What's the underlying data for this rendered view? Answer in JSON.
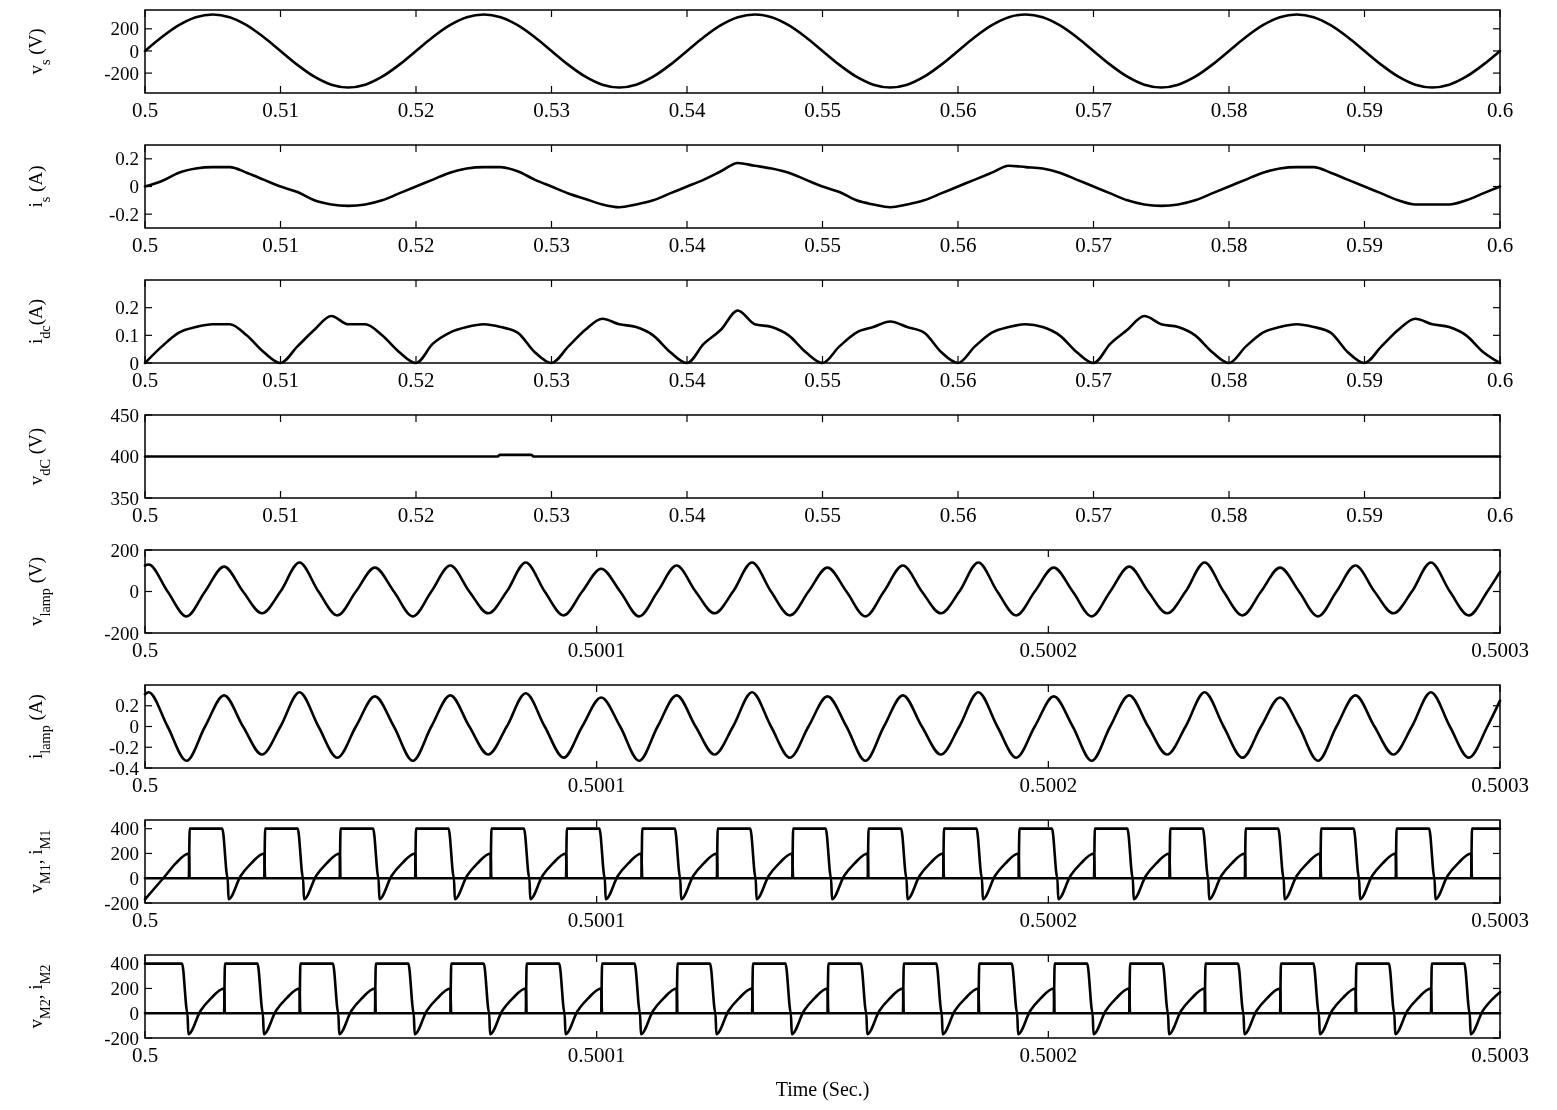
{
  "chart_data": [
    {
      "type": "line",
      "ylabel": "v$_{s}$ (V)",
      "xlim": [
        0.5,
        0.6
      ],
      "xticks": [
        0.5,
        0.51,
        0.52,
        0.53,
        0.54,
        0.55,
        0.56,
        0.57,
        0.58,
        0.59,
        0.6
      ],
      "ylim": [
        -380,
        370
      ],
      "yticks": [
        -200,
        0,
        200
      ],
      "x": [
        0.5,
        0.50125,
        0.5025,
        0.50375,
        0.505,
        0.50625,
        0.5075,
        0.50875,
        0.51,
        0.51125,
        0.5125,
        0.51375,
        0.515,
        0.51625,
        0.5175,
        0.51875,
        0.52,
        0.52125,
        0.5225,
        0.52375,
        0.525,
        0.52625,
        0.5275,
        0.52875,
        0.53,
        0.53125,
        0.5325,
        0.53375,
        0.535,
        0.53625,
        0.5375,
        0.53875,
        0.54,
        0.54125,
        0.5425,
        0.54375,
        0.545,
        0.54625,
        0.5475,
        0.54875,
        0.55,
        0.55125,
        0.5525,
        0.55375,
        0.555,
        0.55625,
        0.5575,
        0.55875,
        0.56,
        0.56125,
        0.5625,
        0.56375,
        0.565,
        0.56625,
        0.5675,
        0.56875,
        0.57,
        0.57125,
        0.5725,
        0.57375,
        0.575,
        0.57625,
        0.5775,
        0.57875,
        0.58,
        0.58125,
        0.5825,
        0.58375,
        0.585,
        0.58625,
        0.5875,
        0.58875,
        0.59,
        0.59125,
        0.5925,
        0.59375,
        0.595,
        0.59625,
        0.5975,
        0.59875,
        0.6
      ],
      "series": [
        {
          "color": "#000000",
          "values": [
            0,
            126,
            233,
            305,
            330,
            305,
            233,
            126,
            0,
            -126,
            -233,
            -305,
            -330,
            -305,
            -233,
            -126,
            0,
            126,
            233,
            305,
            330,
            305,
            233,
            126,
            0,
            -126,
            -233,
            -305,
            -330,
            -305,
            -233,
            -126,
            0,
            126,
            233,
            305,
            330,
            305,
            233,
            126,
            0,
            -126,
            -233,
            -305,
            -330,
            -305,
            -233,
            -126,
            0,
            126,
            233,
            305,
            330,
            305,
            233,
            126,
            0,
            -126,
            -233,
            -305,
            -330,
            -305,
            -233,
            -126,
            0,
            126,
            233,
            305,
            330,
            305,
            233,
            126,
            0,
            -126,
            -233,
            -305,
            -330,
            -305,
            -233,
            -126,
            0
          ]
        }
      ]
    },
    {
      "type": "line",
      "ylabel": "i$_{s}$ (A)",
      "xlim": [
        0.5,
        0.6
      ],
      "xticks": [
        0.5,
        0.51,
        0.52,
        0.53,
        0.54,
        0.55,
        0.56,
        0.57,
        0.58,
        0.59,
        0.6
      ],
      "ylim": [
        -0.3,
        0.3
      ],
      "yticks": [
        -0.2,
        0,
        0.2
      ],
      "x": [
        0.5,
        0.50125,
        0.5025,
        0.50375,
        0.505,
        0.50625,
        0.5075,
        0.50875,
        0.51,
        0.51125,
        0.5125,
        0.51375,
        0.515,
        0.51625,
        0.5175,
        0.51875,
        0.52,
        0.52125,
        0.5225,
        0.52375,
        0.525,
        0.52625,
        0.5275,
        0.52875,
        0.53,
        0.53125,
        0.5325,
        0.53375,
        0.535,
        0.53625,
        0.5375,
        0.53875,
        0.54,
        0.54125,
        0.5425,
        0.54375,
        0.545,
        0.54625,
        0.5475,
        0.54875,
        0.55,
        0.55125,
        0.5525,
        0.55375,
        0.555,
        0.55625,
        0.5575,
        0.55875,
        0.56,
        0.56125,
        0.5625,
        0.56375,
        0.565,
        0.56625,
        0.5675,
        0.56875,
        0.57,
        0.57125,
        0.5725,
        0.57375,
        0.575,
        0.57625,
        0.5775,
        0.57875,
        0.58,
        0.58125,
        0.5825,
        0.58375,
        0.585,
        0.58625,
        0.5875,
        0.58875,
        0.59,
        0.59125,
        0.5925,
        0.59375,
        0.595,
        0.59625,
        0.5975,
        0.59875,
        0.6
      ],
      "series": [
        {
          "color": "#000000",
          "values": [
            0,
            0.04,
            0.1,
            0.13,
            0.14,
            0.14,
            0.1,
            0.05,
            0,
            -0.04,
            -0.1,
            -0.13,
            -0.14,
            -0.13,
            -0.1,
            -0.05,
            0,
            0.05,
            0.1,
            0.13,
            0.14,
            0.14,
            0.11,
            0.05,
            0,
            -0.05,
            -0.09,
            -0.13,
            -0.15,
            -0.13,
            -0.1,
            -0.05,
            0,
            0.05,
            0.11,
            0.17,
            0.15,
            0.13,
            0.1,
            0.05,
            0,
            -0.04,
            -0.1,
            -0.13,
            -0.15,
            -0.13,
            -0.1,
            -0.05,
            0,
            0.05,
            0.1,
            0.15,
            0.14,
            0.13,
            0.1,
            0.05,
            0,
            -0.05,
            -0.1,
            -0.13,
            -0.14,
            -0.13,
            -0.1,
            -0.05,
            0,
            0.05,
            0.1,
            0.13,
            0.14,
            0.14,
            0.1,
            0.05,
            0,
            -0.05,
            -0.1,
            -0.13,
            -0.13,
            -0.13,
            -0.1,
            -0.05,
            0
          ]
        }
      ]
    },
    {
      "type": "line",
      "ylabel": "i$_{dc}$(A)",
      "xlim": [
        0.5,
        0.6
      ],
      "xticks": [
        0.5,
        0.51,
        0.52,
        0.53,
        0.54,
        0.55,
        0.56,
        0.57,
        0.58,
        0.59,
        0.6
      ],
      "ylim": [
        0,
        0.3
      ],
      "yticks": [
        0,
        0.1,
        0.2
      ],
      "x": [
        0.5,
        0.50125,
        0.5025,
        0.50375,
        0.505,
        0.50625,
        0.5075,
        0.50875,
        0.51,
        0.51125,
        0.5125,
        0.51375,
        0.515,
        0.51625,
        0.5175,
        0.51875,
        0.52,
        0.52125,
        0.5225,
        0.52375,
        0.525,
        0.52625,
        0.5275,
        0.52875,
        0.53,
        0.53125,
        0.5325,
        0.53375,
        0.535,
        0.53625,
        0.5375,
        0.53875,
        0.54,
        0.54125,
        0.5425,
        0.54375,
        0.545,
        0.54625,
        0.5475,
        0.54875,
        0.55,
        0.55125,
        0.5525,
        0.55375,
        0.555,
        0.55625,
        0.5575,
        0.55875,
        0.56,
        0.56125,
        0.5625,
        0.56375,
        0.565,
        0.56625,
        0.5675,
        0.56875,
        0.57,
        0.57125,
        0.5725,
        0.57375,
        0.575,
        0.57625,
        0.5775,
        0.57875,
        0.58,
        0.58125,
        0.5825,
        0.58375,
        0.585,
        0.58625,
        0.5875,
        0.58875,
        0.59,
        0.59125,
        0.5925,
        0.59375,
        0.595,
        0.59625,
        0.5975,
        0.59875,
        0.6
      ],
      "series": [
        {
          "color": "#000000",
          "values": [
            0,
            0.06,
            0.11,
            0.13,
            0.14,
            0.14,
            0.1,
            0.04,
            0,
            0.06,
            0.12,
            0.17,
            0.14,
            0.14,
            0.1,
            0.04,
            0,
            0.07,
            0.11,
            0.13,
            0.14,
            0.13,
            0.11,
            0.04,
            0,
            0.06,
            0.12,
            0.16,
            0.14,
            0.13,
            0.1,
            0.04,
            0,
            0.07,
            0.12,
            0.19,
            0.14,
            0.13,
            0.1,
            0.04,
            0,
            0.06,
            0.11,
            0.13,
            0.15,
            0.13,
            0.11,
            0.04,
            0,
            0.06,
            0.11,
            0.13,
            0.14,
            0.13,
            0.1,
            0.04,
            0,
            0.07,
            0.12,
            0.17,
            0.14,
            0.13,
            0.1,
            0.04,
            0,
            0.06,
            0.11,
            0.13,
            0.14,
            0.13,
            0.11,
            0.04,
            0,
            0.06,
            0.12,
            0.16,
            0.14,
            0.13,
            0.1,
            0.04,
            0
          ]
        }
      ]
    },
    {
      "type": "line",
      "ylabel": "v$_{dC}$ (V)",
      "xlim": [
        0.5,
        0.6
      ],
      "xticks": [
        0.5,
        0.51,
        0.52,
        0.53,
        0.54,
        0.55,
        0.56,
        0.57,
        0.58,
        0.59,
        0.6
      ],
      "ylim": [
        350,
        450
      ],
      "yticks": [
        350,
        400,
        450
      ],
      "x": [
        0.5,
        0.526,
        0.5262,
        0.5285,
        0.5287,
        0.6
      ],
      "series": [
        {
          "color": "#000000",
          "values": [
            400,
            400,
            402,
            402,
            400,
            400
          ]
        }
      ]
    },
    {
      "type": "line",
      "ylabel": "v$_{lamp}$ (V)",
      "xlim": [
        0.5,
        0.5003
      ],
      "xticks": [
        0.5,
        0.5001,
        0.5002,
        0.5003
      ],
      "ylim": [
        -200,
        200
      ],
      "yticks": [
        -200,
        0,
        200
      ],
      "x": [
        0.5,
        0.5000008,
        0.500005,
        0.5000092,
        0.5000133,
        0.5000175,
        0.5000217,
        0.5000259,
        0.50003,
        0.5000342,
        0.5000384,
        0.5000426,
        0.5000467,
        0.5000509,
        0.5000551,
        0.5000593,
        0.5000634,
        0.5000676,
        0.5000718,
        0.500076,
        0.5000801,
        0.5000843,
        0.5000885,
        0.5000927,
        0.5000968,
        0.500101,
        0.5001052,
        0.5001094,
        0.5001135,
        0.5001177,
        0.5001219,
        0.5001261,
        0.5001302,
        0.5001344,
        0.5001386,
        0.5001428,
        0.5001469,
        0.5001511,
        0.5001553,
        0.5001595,
        0.5001636,
        0.5001678,
        0.500172,
        0.5001762,
        0.5001803,
        0.5001845,
        0.5001887,
        0.5001929,
        0.500197,
        0.5002012,
        0.5002054,
        0.5002096,
        0.5002137,
        0.5002179,
        0.5002221,
        0.5002263,
        0.5002304,
        0.5002346,
        0.5002388,
        0.500243,
        0.5002471,
        0.5002513,
        0.5002555,
        0.5002597,
        0.5002638,
        0.500268,
        0.5002722,
        0.5002764,
        0.5002805,
        0.5002847,
        0.5002889,
        0.5002931,
        0.5002972,
        0.5003
      ],
      "series": [
        {
          "color": "#000000",
          "values": [
            125,
            130,
            0,
            -120,
            0,
            120,
            0,
            -105,
            0,
            140,
            0,
            -115,
            0,
            115,
            0,
            -120,
            0,
            125,
            0,
            -105,
            0,
            140,
            0,
            -115,
            0,
            110,
            0,
            -120,
            0,
            125,
            0,
            -105,
            0,
            140,
            0,
            -115,
            0,
            115,
            0,
            -120,
            0,
            125,
            0,
            -105,
            0,
            140,
            0,
            -115,
            0,
            115,
            0,
            -120,
            0,
            120,
            0,
            -105,
            0,
            140,
            0,
            -115,
            0,
            115,
            0,
            -120,
            0,
            125,
            0,
            -105,
            0,
            140,
            0,
            -115,
            0,
            95
          ]
        }
      ]
    },
    {
      "type": "line",
      "ylabel": "i$_{lamp}$ (A)",
      "xlim": [
        0.5,
        0.5003
      ],
      "xticks": [
        0.5,
        0.5001,
        0.5002,
        0.5003
      ],
      "ylim": [
        -0.4,
        0.4
      ],
      "yticks": [
        -0.4,
        -0.2,
        0,
        0.2
      ],
      "x": [
        0.5,
        0.5000008,
        0.500005,
        0.5000092,
        0.5000133,
        0.5000175,
        0.5000217,
        0.5000259,
        0.50003,
        0.5000342,
        0.5000384,
        0.5000426,
        0.5000467,
        0.5000509,
        0.5000551,
        0.5000593,
        0.5000634,
        0.5000676,
        0.5000718,
        0.500076,
        0.5000801,
        0.5000843,
        0.5000885,
        0.5000927,
        0.5000968,
        0.500101,
        0.5001052,
        0.5001094,
        0.5001135,
        0.5001177,
        0.5001219,
        0.5001261,
        0.5001302,
        0.5001344,
        0.5001386,
        0.5001428,
        0.5001469,
        0.5001511,
        0.5001553,
        0.5001595,
        0.5001636,
        0.5001678,
        0.500172,
        0.5001762,
        0.5001803,
        0.5001845,
        0.5001887,
        0.5001929,
        0.500197,
        0.5002012,
        0.5002054,
        0.5002096,
        0.5002137,
        0.5002179,
        0.5002221,
        0.5002263,
        0.5002304,
        0.5002346,
        0.5002388,
        0.500243,
        0.5002471,
        0.5002513,
        0.5002555,
        0.5002597,
        0.5002638,
        0.500268,
        0.5002722,
        0.5002764,
        0.5002805,
        0.5002847,
        0.5002889,
        0.5002931,
        0.5002972,
        0.5003
      ],
      "series": [
        {
          "color": "#000000",
          "values": [
            0.31,
            0.33,
            0,
            -0.33,
            0,
            0.3,
            0,
            -0.27,
            0,
            0.33,
            0,
            -0.3,
            0,
            0.29,
            0,
            -0.33,
            0,
            0.3,
            0,
            -0.27,
            0,
            0.32,
            0,
            -0.3,
            0,
            0.28,
            0,
            -0.33,
            0,
            0.3,
            0,
            -0.27,
            0,
            0.33,
            0,
            -0.3,
            0,
            0.29,
            0,
            -0.33,
            0,
            0.3,
            0,
            -0.27,
            0,
            0.33,
            0,
            -0.3,
            0,
            0.29,
            0,
            -0.33,
            0,
            0.3,
            0,
            -0.27,
            0,
            0.33,
            0,
            -0.3,
            0,
            0.28,
            0,
            -0.33,
            0,
            0.3,
            0,
            -0.27,
            0,
            0.33,
            0,
            -0.3,
            0,
            0.25
          ]
        }
      ]
    },
    {
      "type": "line",
      "ylabel": "v$_{M1}$, i$_{M1}$",
      "xlim": [
        0.5,
        0.5003
      ],
      "xticks": [
        0.5,
        0.5001,
        0.5002,
        0.5003
      ],
      "ylim": [
        -200,
        470
      ],
      "yticks": [
        -200,
        0,
        200,
        400
      ],
      "x": [
        0.5,
        0.5000045,
        0.5000068,
        0.5000097,
        0.5000099,
        0.5000171,
        0.5000183,
        0.5000185,
        0.5000212,
        0.5000235,
        0.5000264,
        0.5000266,
        0.5000338,
        0.500035,
        0.5000352,
        0.5000379,
        0.5000402,
        0.5000431,
        0.5000433,
        0.5000505,
        0.5000517,
        0.5000519,
        0.5000546,
        0.5000569,
        0.5000598,
        0.50006,
        0.5000672,
        0.5000684,
        0.5000686,
        0.5000713,
        0.5000736,
        0.5000765,
        0.5000767,
        0.5000839,
        0.5000851,
        0.5000853,
        0.500088,
        0.5000903,
        0.5000932,
        0.5000934,
        0.5001006,
        0.5001018,
        0.500102,
        0.5001047,
        0.500107,
        0.5001099,
        0.5001101,
        0.5001173,
        0.5001185,
        0.5001187,
        0.5001214,
        0.5001237,
        0.5001266,
        0.5001268,
        0.500134,
        0.5001352,
        0.5001354,
        0.5001381,
        0.5001404,
        0.5001433,
        0.5001435,
        0.5001507,
        0.5001519,
        0.5001521,
        0.5001548,
        0.5001571,
        0.50016,
        0.5001602,
        0.5001674,
        0.5001686,
        0.5001688,
        0.5001715,
        0.5001738,
        0.5001767,
        0.5001769,
        0.5001841,
        0.5001853,
        0.5001855,
        0.5001882,
        0.5001905,
        0.5001934,
        0.5001936,
        0.5002008,
        0.500202,
        0.5002022,
        0.5002049,
        0.5002072,
        0.5002101,
        0.5002103,
        0.5002175,
        0.5002187,
        0.5002189,
        0.5002216,
        0.5002239,
        0.5002268,
        0.500227,
        0.5002342,
        0.5002354,
        0.5002356,
        0.5002383,
        0.5002406,
        0.5002435,
        0.5002437,
        0.5002509,
        0.5002521,
        0.5002523,
        0.500255,
        0.5002573,
        0.5002602,
        0.5002604,
        0.5002676,
        0.5002688,
        0.500269,
        0.5002717,
        0.500274,
        0.5002769,
        0.5002771,
        0.5002843,
        0.5002855,
        0.5002857,
        0.5002884,
        0.5002907,
        0.5002936,
        0.5002938,
        0.5003
      ],
      "series": [
        {
          "color": "#000000",
          "values": [
            0,
            0,
            0,
            0,
            400,
            400,
            0,
            0,
            0,
            0,
            0,
            400,
            400,
            0,
            0,
            0,
            0,
            0,
            400,
            400,
            0,
            0,
            0,
            0,
            0,
            400,
            400,
            0,
            0,
            0,
            0,
            0,
            400,
            400,
            0,
            0,
            0,
            0,
            0,
            400,
            400,
            0,
            0,
            0,
            0,
            0,
            400,
            400,
            0,
            0,
            0,
            0,
            0,
            400,
            400,
            0,
            0,
            0,
            0,
            0,
            400,
            400,
            0,
            0,
            0,
            0,
            0,
            400,
            400,
            0,
            0,
            0,
            0,
            0,
            400,
            400,
            0,
            0,
            0,
            0,
            0,
            400,
            400,
            0,
            0,
            0,
            0,
            0,
            400,
            400,
            0,
            0,
            0,
            0,
            0,
            400,
            400,
            0,
            0,
            0,
            0,
            0,
            400,
            400,
            0,
            0,
            0,
            0,
            0,
            400,
            400,
            0,
            0,
            0,
            0,
            0,
            400,
            400,
            0,
            0,
            0,
            0,
            0,
            400,
            400
          ]
        },
        {
          "color": "#000000",
          "values": [
            -170,
            20,
            120,
            200,
            0,
            0,
            0,
            -170,
            20,
            120,
            200,
            0,
            0,
            0,
            -170,
            20,
            120,
            200,
            0,
            0,
            0,
            -170,
            20,
            120,
            200,
            0,
            0,
            0,
            -170,
            20,
            120,
            200,
            0,
            0,
            0,
            -170,
            20,
            120,
            200,
            0,
            0,
            0,
            -170,
            20,
            120,
            200,
            0,
            0,
            0,
            -170,
            20,
            120,
            200,
            0,
            0,
            0,
            -170,
            20,
            120,
            200,
            0,
            0,
            0,
            -170,
            20,
            120,
            200,
            0,
            0,
            0,
            -170,
            20,
            120,
            200,
            0,
            0,
            0,
            -170,
            20,
            120,
            200,
            0,
            0,
            0,
            -170,
            20,
            120,
            200,
            0,
            0,
            0,
            -170,
            20,
            120,
            200,
            0,
            0,
            0,
            -170,
            20,
            120,
            200,
            0,
            0,
            0,
            -170,
            20,
            120,
            200,
            0,
            0,
            0,
            -170,
            20,
            120,
            200,
            0,
            0,
            0,
            -170,
            20,
            120,
            200,
            0,
            0
          ]
        }
      ]
    },
    {
      "type": "line",
      "ylabel": "v$_{M2}$, i$_{M2}$",
      "xlabel": "Time (Sec.)",
      "xlim": [
        0.5,
        0.5003
      ],
      "xticks": [
        0.5,
        0.5001,
        0.5002,
        0.5003
      ],
      "ylim": [
        -200,
        470
      ],
      "yticks": [
        -200,
        0,
        200,
        400
      ],
      "x": [
        0.5,
        0.5000082,
        0.5000094,
        0.5000096,
        0.5000123,
        0.5000146,
        0.5000175,
        0.5000177,
        0.5000249,
        0.5000261,
        0.5000263,
        0.500029,
        0.5000313,
        0.5000342,
        0.5000344,
        0.5000416,
        0.5000428,
        0.500043,
        0.5000457,
        0.500048,
        0.5000509,
        0.5000511,
        0.5000583,
        0.5000595,
        0.5000597,
        0.5000624,
        0.5000647,
        0.5000676,
        0.5000678,
        0.500075,
        0.5000762,
        0.5000764,
        0.5000791,
        0.5000814,
        0.5000843,
        0.5000845,
        0.5000917,
        0.5000929,
        0.5000931,
        0.5000958,
        0.5000981,
        0.500101,
        0.5001012,
        0.5001084,
        0.5001096,
        0.5001098,
        0.5001125,
        0.5001148,
        0.5001177,
        0.5001179,
        0.5001251,
        0.5001263,
        0.5001265,
        0.5001292,
        0.5001315,
        0.5001344,
        0.5001346,
        0.5001418,
        0.500143,
        0.5001432,
        0.5001459,
        0.5001482,
        0.5001511,
        0.5001513,
        0.5001585,
        0.5001597,
        0.5001599,
        0.5001626,
        0.5001649,
        0.5001678,
        0.500168,
        0.5001752,
        0.5001764,
        0.5001766,
        0.5001793,
        0.5001816,
        0.5001845,
        0.5001847,
        0.5001919,
        0.5001931,
        0.5001933,
        0.500196,
        0.5001983,
        0.5002012,
        0.5002014,
        0.5002086,
        0.5002098,
        0.50021,
        0.5002127,
        0.500215,
        0.5002179,
        0.5002181,
        0.5002253,
        0.5002265,
        0.5002267,
        0.5002294,
        0.5002317,
        0.5002346,
        0.5002348,
        0.500242,
        0.5002432,
        0.5002434,
        0.5002461,
        0.5002484,
        0.5002513,
        0.5002515,
        0.5002587,
        0.5002599,
        0.5002601,
        0.5002628,
        0.5002651,
        0.500268,
        0.5002682,
        0.5002754,
        0.5002766,
        0.5002768,
        0.5002795,
        0.5002818,
        0.5002847,
        0.5002849,
        0.5002921,
        0.5002933,
        0.5002935,
        0.5002962,
        0.5002985,
        0.5003
      ],
      "series": [
        {
          "color": "#000000",
          "values": [
            400,
            400,
            0,
            0,
            0,
            0,
            0,
            400,
            400,
            0,
            0,
            0,
            0,
            0,
            400,
            400,
            0,
            0,
            0,
            0,
            0,
            400,
            400,
            0,
            0,
            0,
            0,
            0,
            400,
            400,
            0,
            0,
            0,
            0,
            0,
            400,
            400,
            0,
            0,
            0,
            0,
            0,
            400,
            400,
            0,
            0,
            0,
            0,
            0,
            400,
            400,
            0,
            0,
            0,
            0,
            0,
            400,
            400,
            0,
            0,
            0,
            0,
            0,
            400,
            400,
            0,
            0,
            0,
            0,
            0,
            400,
            400,
            0,
            0,
            0,
            0,
            0,
            400,
            400,
            0,
            0,
            0,
            0,
            0,
            400,
            400,
            0,
            0,
            0,
            0,
            0,
            400,
            400,
            0,
            0,
            0,
            0,
            0,
            400,
            400,
            0,
            0,
            0,
            0,
            0,
            400,
            400,
            0,
            0,
            0,
            0,
            0,
            400,
            400,
            0,
            0,
            0,
            0,
            0,
            400,
            400,
            0,
            0,
            0,
            0,
            0
          ]
        },
        {
          "color": "#000000",
          "values": [
            0,
            0,
            0,
            -170,
            20,
            120,
            200,
            0,
            0,
            0,
            -170,
            20,
            120,
            200,
            0,
            0,
            0,
            -170,
            20,
            120,
            200,
            0,
            0,
            0,
            -170,
            20,
            120,
            200,
            0,
            0,
            0,
            -170,
            20,
            120,
            200,
            0,
            0,
            0,
            -170,
            20,
            120,
            200,
            0,
            0,
            0,
            -170,
            20,
            120,
            200,
            0,
            0,
            0,
            -170,
            20,
            120,
            200,
            0,
            0,
            0,
            -170,
            20,
            120,
            200,
            0,
            0,
            0,
            -170,
            20,
            120,
            200,
            0,
            0,
            0,
            -170,
            20,
            120,
            200,
            0,
            0,
            0,
            -170,
            20,
            120,
            200,
            0,
            0,
            0,
            -170,
            20,
            120,
            200,
            0,
            0,
            0,
            -170,
            20,
            120,
            200,
            0,
            0,
            0,
            -170,
            20,
            120,
            200,
            0,
            0,
            0,
            -170,
            20,
            120,
            200,
            0,
            0,
            0,
            -170,
            20,
            120,
            200,
            0,
            0,
            0,
            -170,
            20,
            120,
            170
          ]
        }
      ]
    }
  ]
}
